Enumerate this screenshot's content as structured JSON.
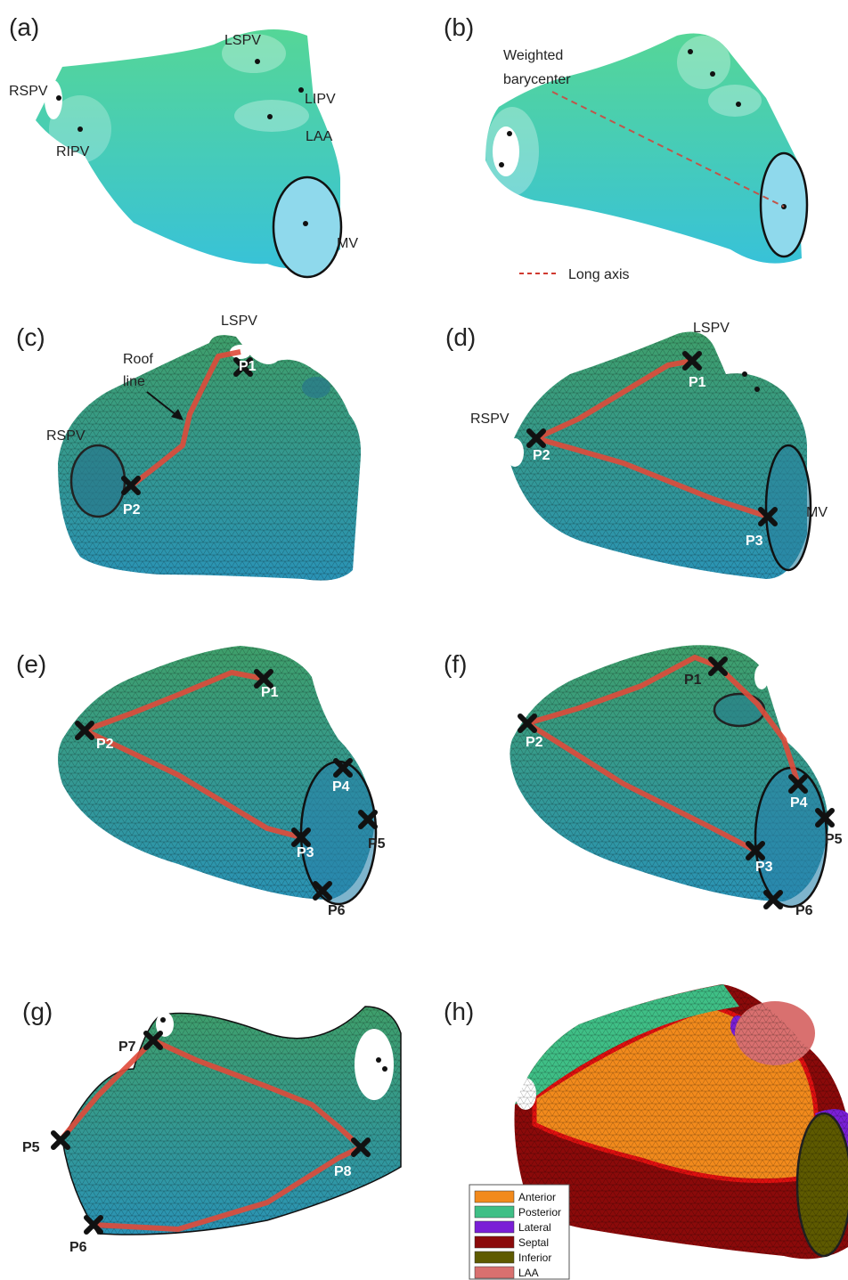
{
  "panels": [
    {
      "label": "(a)",
      "annotations": [
        "RSPV",
        "RIPV",
        "LSPV",
        "LIPV",
        "LAA",
        "MV"
      ]
    },
    {
      "label": "(b)",
      "annotations": [
        "Weighted",
        "barycenter"
      ],
      "legend": "Long axis"
    },
    {
      "label": "(c)",
      "annotations": [
        "LSPV",
        "Roof",
        "line",
        "RSPV",
        "P1",
        "P2"
      ]
    },
    {
      "label": "(d)",
      "annotations": [
        "LSPV",
        "RSPV",
        "MV",
        "P1",
        "P2",
        "P3"
      ]
    },
    {
      "label": "(e)",
      "annotations": [
        "P1",
        "P2",
        "P3",
        "P4",
        "P5",
        "P6"
      ]
    },
    {
      "label": "(f)",
      "annotations": [
        "P1",
        "P2",
        "P3",
        "P4",
        "P5",
        "P6"
      ]
    },
    {
      "label": "(g)",
      "annotations": [
        "P7",
        "P5",
        "P8",
        "P6"
      ]
    },
    {
      "label": "(h)",
      "legend": [
        {
          "name": "Anterior",
          "color": "#f28a1c"
        },
        {
          "name": "Posterior",
          "color": "#3fbf86"
        },
        {
          "name": "Lateral",
          "color": "#7a1fd6"
        },
        {
          "name": "Septal",
          "color": "#8b0a0a"
        },
        {
          "name": "Inferior",
          "color": "#5e5a00"
        },
        {
          "name": "LAA",
          "color": "#d9706f"
        }
      ]
    }
  ]
}
